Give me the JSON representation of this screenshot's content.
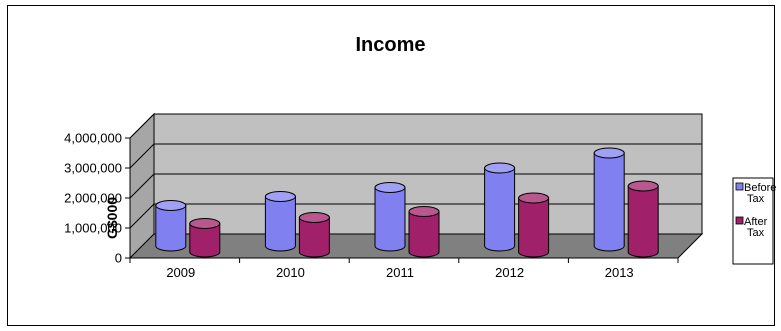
{
  "chart_data": {
    "type": "bar",
    "title": "Income",
    "xlabel": "",
    "ylabel": "G$000",
    "categories": [
      "2009",
      "2010",
      "2011",
      "2012",
      "2013"
    ],
    "series": [
      {
        "name": "Before Tax",
        "name_lines": [
          "Before",
          "Tax"
        ],
        "values": [
          1350000,
          1650000,
          1950000,
          2600000,
          3100000
        ],
        "color": "#8080f0"
      },
      {
        "name": "After Tax",
        "name_lines": [
          "After",
          "Tax"
        ],
        "values": [
          950000,
          1150000,
          1350000,
          1800000,
          2200000
        ],
        "color": "#a0206a"
      }
    ],
    "ylim": [
      0,
      4000000
    ],
    "yticks": [
      "0",
      "1,000,000",
      "2,000,000",
      "3,000,000",
      "4,000,000"
    ],
    "grid": true,
    "legend_position": "right",
    "wall_color": "#c0c0c0",
    "floor_color": "#808080"
  }
}
